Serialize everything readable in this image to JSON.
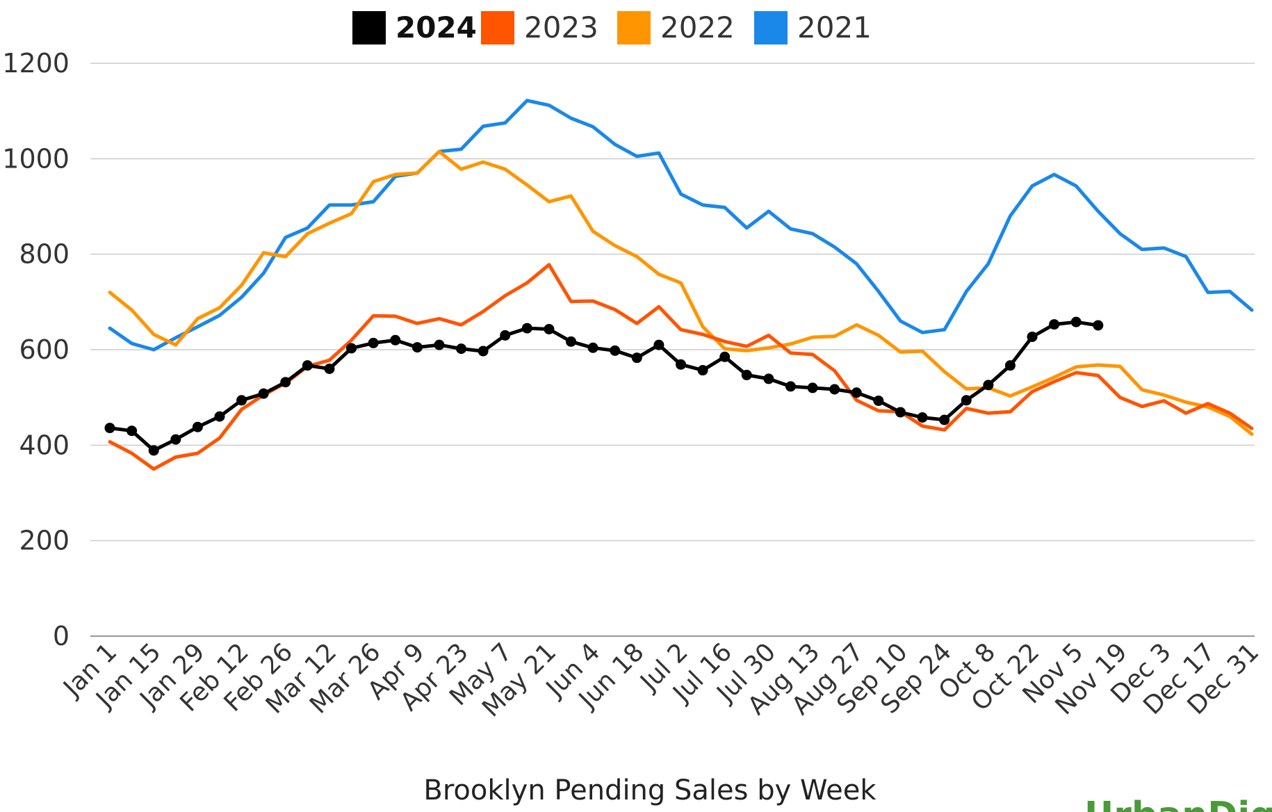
{
  "chart_data": {
    "type": "line",
    "title": "Brooklyn Pending Sales by Week",
    "xlabel": "",
    "ylabel": "",
    "ylim": [
      0,
      1200
    ],
    "yticks": [
      0,
      200,
      400,
      600,
      800,
      1000,
      1200
    ],
    "x_tick_labels": [
      "Jan 1",
      "Jan 15",
      "Jan 29",
      "Feb 12",
      "Feb 26",
      "Mar 12",
      "Mar 26",
      "Apr 9",
      "Apr 23",
      "May 7",
      "May 21",
      "Jun 4",
      "Jun 18",
      "Jul 2",
      "Jul 16",
      "Jul 30",
      "Aug 13",
      "Aug 27",
      "Sep 10",
      "Sep 24",
      "Oct 8",
      "Oct 22",
      "Nov 5",
      "Nov 19",
      "Dec 3",
      "Dec 17",
      "Dec 31"
    ],
    "weeks_total": 53,
    "legend": "top",
    "series": [
      {
        "name": "2021",
        "color": "#1a88e8",
        "markers": false,
        "values": [
          645,
          613,
          600,
          625,
          648,
          672,
          710,
          760,
          835,
          855,
          903,
          903,
          910,
          963,
          970,
          1015,
          1020,
          1068,
          1075,
          1122,
          1112,
          1085,
          1067,
          1030,
          1005,
          1012,
          926,
          903,
          898,
          855,
          890,
          853,
          843,
          815,
          780,
          722,
          660,
          636,
          642,
          722,
          780,
          880,
          943,
          967,
          943,
          890,
          843,
          810,
          813,
          795,
          720,
          722,
          683
        ]
      },
      {
        "name": "2022",
        "color": "#ff9500",
        "markers": false,
        "values": [
          720,
          683,
          632,
          610,
          665,
          688,
          735,
          803,
          795,
          843,
          865,
          885,
          952,
          967,
          970,
          1015,
          978,
          993,
          978,
          945,
          910,
          922,
          848,
          818,
          795,
          758,
          740,
          648,
          602,
          598,
          604,
          612,
          626,
          628,
          652,
          630,
          595,
          597,
          554,
          518,
          520,
          503,
          522,
          542,
          564,
          568,
          565,
          516,
          505,
          490,
          480,
          460,
          423
        ]
      },
      {
        "name": "2023",
        "color": "#ff5400",
        "markers": false,
        "values": [
          407,
          383,
          350,
          375,
          383,
          415,
          475,
          505,
          530,
          565,
          578,
          620,
          671,
          670,
          655,
          665,
          652,
          680,
          713,
          740,
          778,
          701,
          702,
          684,
          655,
          690,
          642,
          632,
          617,
          607,
          630,
          593,
          590,
          556,
          494,
          472,
          470,
          440,
          432,
          477,
          467,
          470,
          512,
          533,
          552,
          546,
          500,
          481,
          493,
          467,
          487,
          467,
          435
        ]
      },
      {
        "name": "2024",
        "color": "#000000",
        "markers": true,
        "values": [
          436,
          430,
          389,
          412,
          438,
          460,
          494,
          508,
          532,
          567,
          560,
          603,
          614,
          620,
          605,
          610,
          602,
          597,
          630,
          645,
          643,
          617,
          604,
          598,
          583,
          610,
          569,
          557,
          585,
          547,
          539,
          523,
          520,
          517,
          510,
          493,
          469,
          458,
          453,
          494,
          526,
          567,
          627,
          653,
          658,
          651
        ]
      }
    ]
  },
  "legend_items": [
    {
      "label": "2024",
      "color": "#000000",
      "bold": true
    },
    {
      "label": "2023",
      "color": "#ff5400",
      "bold": false
    },
    {
      "label": "2022",
      "color": "#ff9500",
      "bold": false
    },
    {
      "label": "2021",
      "color": "#1a88e8",
      "bold": false
    }
  ],
  "brand": {
    "text": "UrbanDigs",
    "color": "#4a9a3a"
  }
}
